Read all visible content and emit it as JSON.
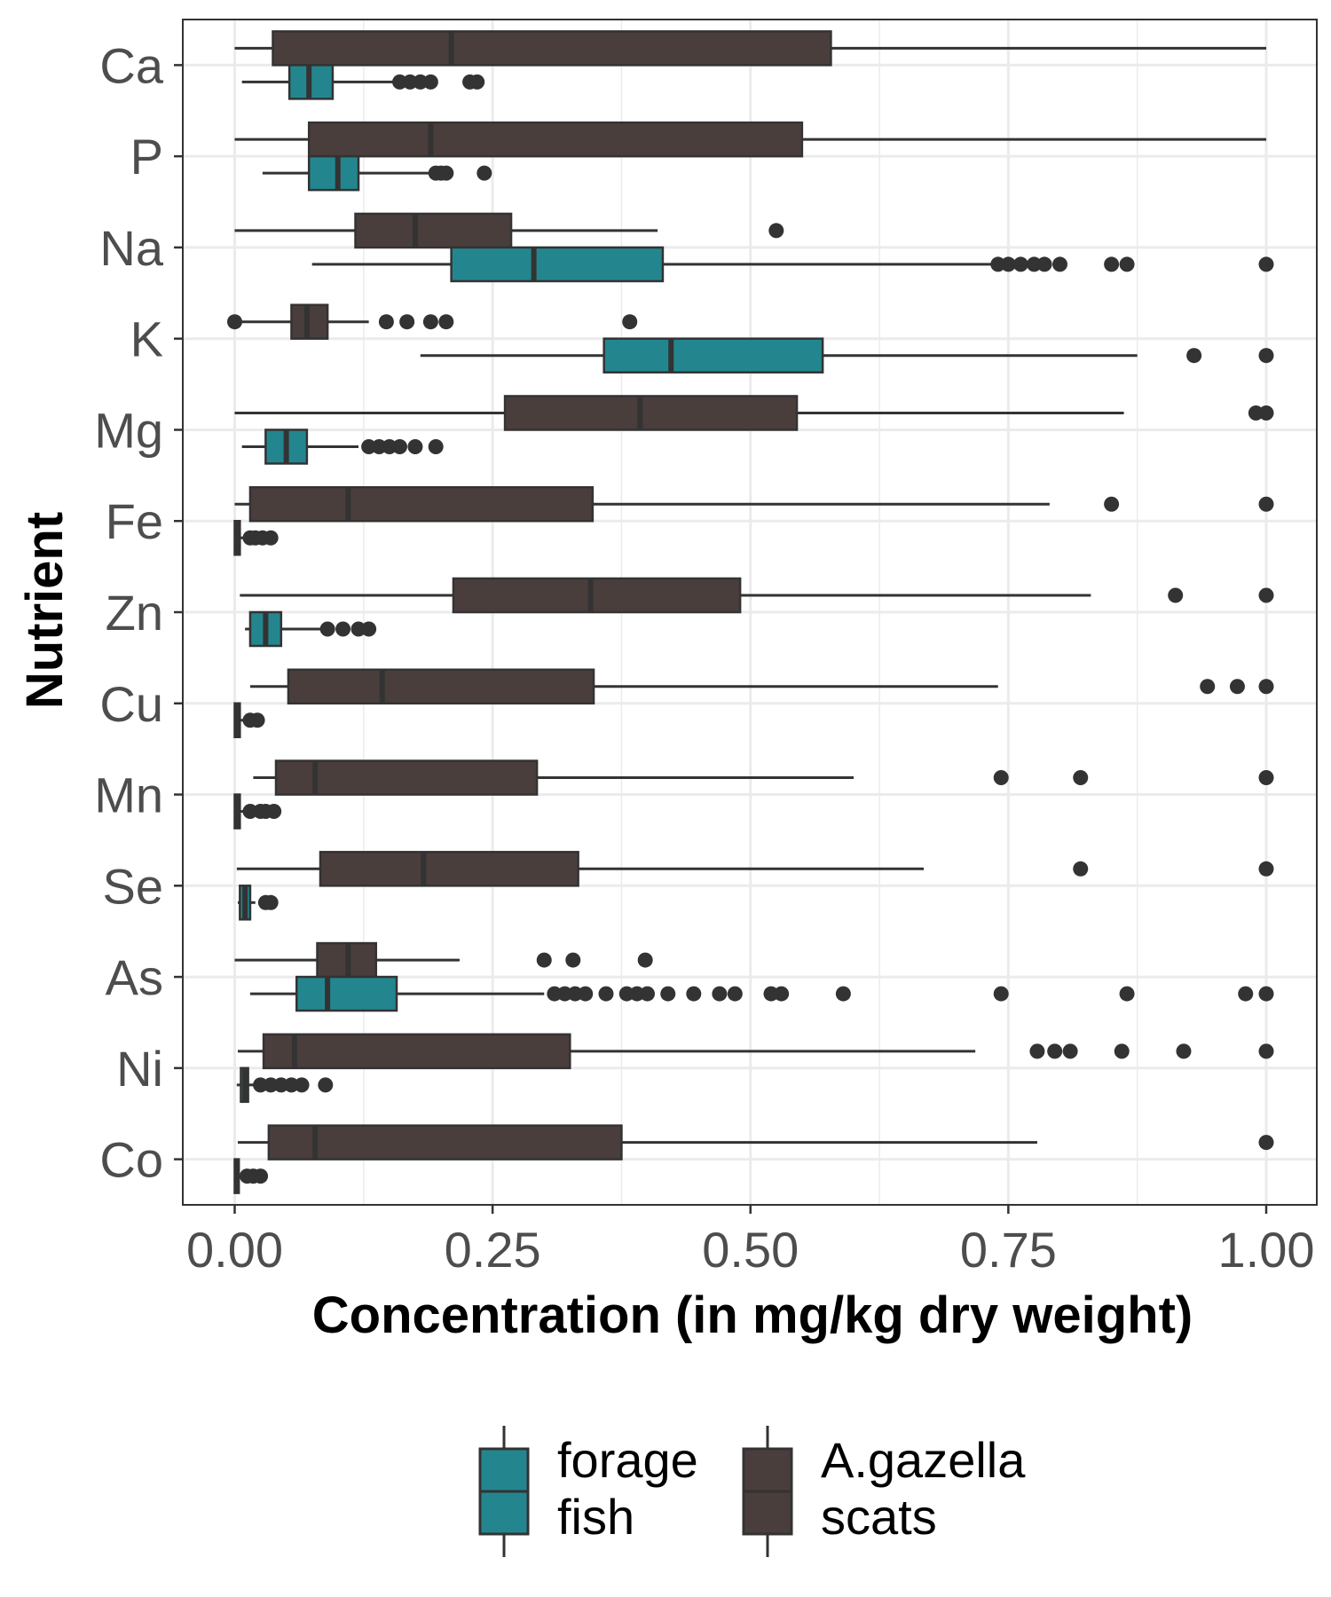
{
  "chart_data": {
    "type": "boxplot",
    "orientation": "horizontal",
    "xlabel": "Concentration (in mg/kg dry weight)",
    "ylabel": "Nutrient",
    "xlim": [
      -0.1,
      1.1
    ],
    "xticks": [
      0,
      0.25,
      0.5,
      0.75,
      1
    ],
    "xtick_labels": [
      "0.00",
      "0.25",
      "0.50",
      "0.75",
      "1.00"
    ],
    "grid": true,
    "legend_position": "bottom",
    "categories": [
      "Ca",
      "P",
      "Na",
      "K",
      "Mg",
      "Fe",
      "Zn",
      "Cu",
      "Mn",
      "Se",
      "As",
      "Ni",
      "Co"
    ],
    "colors": {
      "forage_fish": "#23868f",
      "scats": "#4a3e3d",
      "line": "#333333",
      "grid": "#ebebeb",
      "panel_border": "#333333"
    },
    "series": [
      {
        "name": "A.gazella scats",
        "key": "scats",
        "boxes": [
          {
            "min": 0.0,
            "q1": 0.037,
            "median": 0.21,
            "q3": 0.578,
            "max": 1.0,
            "outliers": []
          },
          {
            "min": 0.0,
            "q1": 0.072,
            "median": 0.19,
            "q3": 0.55,
            "max": 1.0,
            "outliers": []
          },
          {
            "min": 0.0,
            "q1": 0.117,
            "median": 0.175,
            "q3": 0.268,
            "max": 0.41,
            "outliers": [
              0.525
            ]
          },
          {
            "min": 0.0,
            "q1": 0.055,
            "median": 0.07,
            "q3": 0.09,
            "max": 0.13,
            "outliers": [
              0.0,
              0.147,
              0.167,
              0.19,
              0.205,
              0.383
            ]
          },
          {
            "min": 0.0,
            "q1": 0.262,
            "median": 0.393,
            "q3": 0.545,
            "max": 0.862,
            "outliers": [
              0.99,
              1.0
            ]
          },
          {
            "min": 0.0,
            "q1": 0.015,
            "median": 0.11,
            "q3": 0.347,
            "max": 0.79,
            "outliers": [
              0.85,
              1.0
            ]
          },
          {
            "min": 0.005,
            "q1": 0.212,
            "median": 0.345,
            "q3": 0.49,
            "max": 0.83,
            "outliers": [
              0.912,
              1.0
            ]
          },
          {
            "min": 0.015,
            "q1": 0.052,
            "median": 0.143,
            "q3": 0.348,
            "max": 0.74,
            "outliers": [
              0.943,
              0.972,
              1.0
            ]
          },
          {
            "min": 0.018,
            "q1": 0.04,
            "median": 0.078,
            "q3": 0.293,
            "max": 0.6,
            "outliers": [
              0.743,
              0.82,
              1.0
            ]
          },
          {
            "min": 0.002,
            "q1": 0.083,
            "median": 0.183,
            "q3": 0.333,
            "max": 0.668,
            "outliers": [
              0.82,
              1.0
            ]
          },
          {
            "min": 0.0,
            "q1": 0.08,
            "median": 0.11,
            "q3": 0.137,
            "max": 0.218,
            "outliers": [
              0.3,
              0.328,
              0.398
            ]
          },
          {
            "min": 0.003,
            "q1": 0.028,
            "median": 0.058,
            "q3": 0.325,
            "max": 0.718,
            "outliers": [
              0.778,
              0.795,
              0.81,
              0.86,
              0.92,
              1.0
            ]
          },
          {
            "min": 0.003,
            "q1": 0.033,
            "median": 0.078,
            "q3": 0.375,
            "max": 0.778,
            "outliers": [
              1.0
            ]
          }
        ]
      },
      {
        "name": "forage fish",
        "key": "forage_fish",
        "boxes": [
          {
            "min": 0.007,
            "q1": 0.053,
            "median": 0.072,
            "q3": 0.095,
            "max": 0.155,
            "outliers": [
              0.16,
              0.17,
              0.18,
              0.19,
              0.228,
              0.235
            ]
          },
          {
            "min": 0.027,
            "q1": 0.072,
            "median": 0.1,
            "q3": 0.12,
            "max": 0.19,
            "outliers": [
              0.195,
              0.2,
              0.205,
              0.242
            ]
          },
          {
            "min": 0.075,
            "q1": 0.21,
            "median": 0.29,
            "q3": 0.415,
            "max": 0.735,
            "outliers": [
              0.74,
              0.75,
              0.762,
              0.775,
              0.785,
              0.8,
              0.85,
              0.865,
              1.0
            ]
          },
          {
            "min": 0.18,
            "q1": 0.358,
            "median": 0.423,
            "q3": 0.57,
            "max": 0.875,
            "outliers": [
              0.93,
              1.0
            ]
          },
          {
            "min": 0.007,
            "q1": 0.03,
            "median": 0.05,
            "q3": 0.07,
            "max": 0.12,
            "outliers": [
              0.13,
              0.14,
              0.15,
              0.16,
              0.175,
              0.195
            ]
          },
          {
            "min": 0.0,
            "q1": 0.0,
            "median": 0.002,
            "q3": 0.005,
            "max": 0.01,
            "outliers": [
              0.015,
              0.02,
              0.027,
              0.035
            ]
          },
          {
            "min": 0.01,
            "q1": 0.015,
            "median": 0.03,
            "q3": 0.045,
            "max": 0.085,
            "outliers": [
              0.09,
              0.105,
              0.12,
              0.13
            ]
          },
          {
            "min": 0.0,
            "q1": 0.0,
            "median": 0.002,
            "q3": 0.005,
            "max": 0.01,
            "outliers": [
              0.015,
              0.022
            ]
          },
          {
            "min": 0.0,
            "q1": 0.0,
            "median": 0.002,
            "q3": 0.005,
            "max": 0.01,
            "outliers": [
              0.015,
              0.025,
              0.03,
              0.038
            ]
          },
          {
            "min": 0.003,
            "q1": 0.005,
            "median": 0.01,
            "q3": 0.015,
            "max": 0.02,
            "outliers": [
              0.03,
              0.035
            ]
          },
          {
            "min": 0.015,
            "q1": 0.06,
            "median": 0.09,
            "q3": 0.157,
            "max": 0.3,
            "outliers": [
              0.31,
              0.32,
              0.33,
              0.34,
              0.36,
              0.38,
              0.39,
              0.4,
              0.42,
              0.445,
              0.47,
              0.485,
              0.52,
              0.53,
              0.59,
              0.743,
              0.865,
              0.98,
              1.0
            ]
          },
          {
            "min": 0.002,
            "q1": 0.006,
            "median": 0.01,
            "q3": 0.013,
            "max": 0.02,
            "outliers": [
              0.025,
              0.035,
              0.045,
              0.055,
              0.065,
              0.088
            ]
          },
          {
            "min": 0.0,
            "q1": 0.0,
            "median": 0.002,
            "q3": 0.004,
            "max": 0.008,
            "outliers": [
              0.012,
              0.018,
              0.025
            ]
          }
        ]
      }
    ],
    "legend": [
      {
        "key": "forage_fish",
        "lines": [
          "forage",
          "fish"
        ]
      },
      {
        "key": "scats",
        "lines": [
          "A.gazella",
          "scats"
        ]
      }
    ]
  }
}
